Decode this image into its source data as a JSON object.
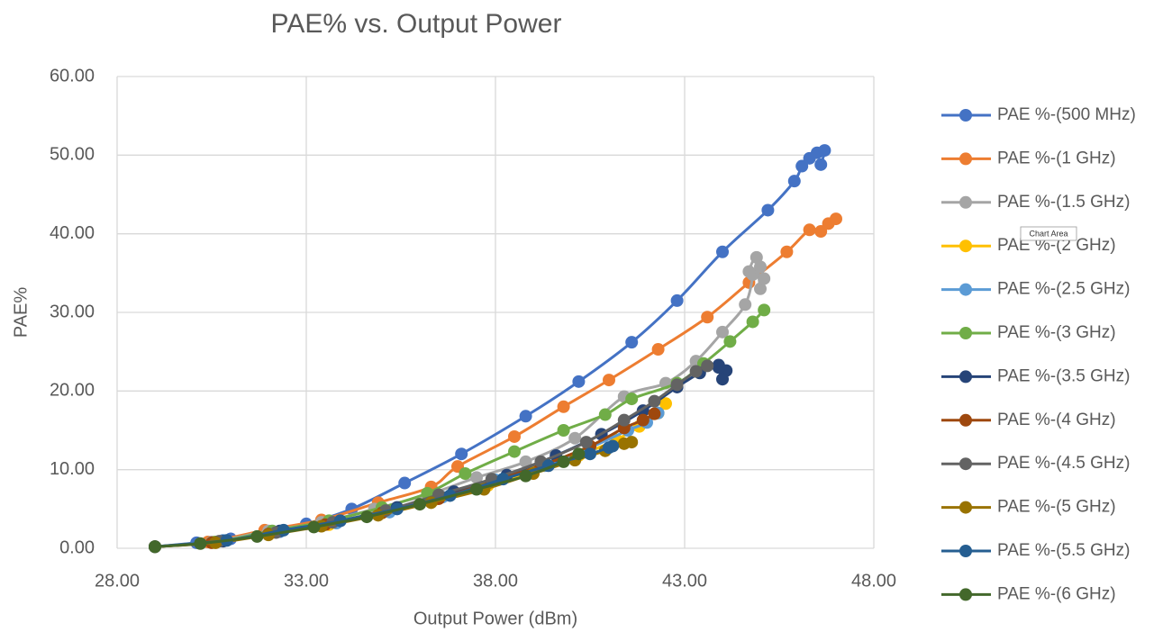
{
  "chart_data": {
    "type": "scatter-line",
    "title": "PAE% vs. Output Power",
    "x_label": "Output Power (dBm)",
    "y_label": "PAE%",
    "tooltip": "Chart Area",
    "xlim": [
      28,
      48
    ],
    "ylim": [
      0,
      60
    ],
    "grid": true,
    "legend": "right",
    "xticks": [
      {
        "value": 28,
        "label": "28.00"
      },
      {
        "value": 33,
        "label": "33.00"
      },
      {
        "value": 38,
        "label": "38.00"
      },
      {
        "value": 43,
        "label": "43.00"
      },
      {
        "value": 48,
        "label": "48.00"
      }
    ],
    "yticks": [
      {
        "value": 0,
        "label": "0.00"
      },
      {
        "value": 10,
        "label": "10.00"
      },
      {
        "value": 20,
        "label": "20.00"
      },
      {
        "value": 30,
        "label": "30.00"
      },
      {
        "value": 40,
        "label": "40.00"
      },
      {
        "value": 50,
        "label": "50.00"
      },
      {
        "value": 60,
        "label": "60.00"
      }
    ],
    "series": [
      {
        "name": "PAE %-(500 MHz)",
        "color": "#4472c4",
        "x": [
          29,
          30.1,
          31,
          32,
          33,
          34.2,
          35.6,
          37.1,
          38.8,
          40.2,
          41.6,
          42.8,
          44,
          45.2,
          45.9,
          46.1,
          46.3,
          46.5,
          46.7,
          46.6
        ],
        "values": [
          0.2,
          0.7,
          1.2,
          2.1,
          3.1,
          5,
          8.3,
          12,
          16.8,
          21.2,
          26.2,
          31.5,
          37.7,
          43,
          46.7,
          48.6,
          49.6,
          50.3,
          50.6,
          48.8
        ]
      },
      {
        "name": "PAE %-(1 GHz)",
        "color": "#ed7d31",
        "x": [
          29,
          30.4,
          31.9,
          33.4,
          34.9,
          36.3,
          37,
          38.5,
          39.8,
          41,
          42.3,
          43.6,
          44.7,
          45.7,
          46.3,
          46.6,
          46.8,
          47
        ],
        "values": [
          0.2,
          0.8,
          2.3,
          3.6,
          5.8,
          7.8,
          10.4,
          14.2,
          18,
          21.4,
          25.3,
          29.4,
          33.8,
          37.7,
          40.5,
          40.3,
          41.3,
          41.9
        ]
      },
      {
        "name": "PAE %-(1.5 GHz)",
        "color": "#a5a5a5",
        "x": [
          29,
          30.5,
          32,
          33.4,
          34.8,
          36.2,
          37.5,
          38.8,
          40.1,
          41.4,
          42.5,
          43.3,
          44,
          44.6,
          44.8,
          44.7,
          44.9,
          45,
          45.1,
          45
        ],
        "values": [
          0.2,
          0.8,
          2.2,
          3.3,
          5,
          6.8,
          9,
          11,
          14,
          19.3,
          21,
          23.8,
          27.5,
          31,
          34.8,
          35.2,
          37,
          33,
          34.3,
          35.8
        ]
      },
      {
        "name": "PAE %-(2 GHz)",
        "color": "#ffc000",
        "x": [
          29,
          30.6,
          32.1,
          33.6,
          35,
          36.4,
          37.8,
          39,
          40.2,
          41.2,
          41.8,
          42.3,
          42.5
        ],
        "values": [
          0.2,
          0.8,
          2,
          3,
          4.5,
          6.2,
          8,
          9.8,
          11.8,
          13.8,
          15.5,
          17.2,
          18.4
        ]
      },
      {
        "name": "PAE %-(2.5 GHz)",
        "color": "#5b9bd5",
        "x": [
          29,
          30.8,
          32.3,
          33.8,
          35.2,
          36.6,
          38,
          39.3,
          40.5,
          41.5,
          42,
          42.3
        ],
        "values": [
          0.2,
          1,
          2.1,
          3.2,
          4.6,
          6.5,
          8.7,
          10.5,
          12.8,
          15,
          16,
          17.2
        ]
      },
      {
        "name": "PAE %-(3 GHz)",
        "color": "#70ad47",
        "x": [
          29,
          30.6,
          32.1,
          33.6,
          35,
          36.2,
          37.2,
          38.5,
          39.8,
          40.9,
          41.6,
          42.8,
          43.5,
          44.2,
          44.8,
          45.1
        ],
        "values": [
          0.2,
          0.8,
          2.2,
          3.5,
          5.2,
          7,
          9.5,
          12.3,
          15,
          17,
          19,
          21,
          23.5,
          26.3,
          28.8,
          30.3
        ]
      },
      {
        "name": "PAE %-(3.5 GHz)",
        "color": "#264478",
        "x": [
          29,
          30.8,
          32.3,
          33.9,
          35.4,
          36.9,
          38.3,
          39.6,
          40.8,
          41.9,
          42.8,
          43.4,
          43.9,
          44.1,
          44,
          43.9
        ],
        "values": [
          0.2,
          0.9,
          2.2,
          3.5,
          5.2,
          7.2,
          9.3,
          11.8,
          14.5,
          17.5,
          20.5,
          22.3,
          23.3,
          22.6,
          21.5,
          23
        ]
      },
      {
        "name": "PAE %-(4 GHz)",
        "color": "#9e480e",
        "x": [
          29,
          30.5,
          32,
          33.5,
          35,
          36.5,
          37.9,
          39.2,
          40.5,
          41.4,
          41.9,
          42.2
        ],
        "values": [
          0.2,
          0.7,
          1.8,
          3,
          4.5,
          6.3,
          8.5,
          10.5,
          13,
          15.3,
          16.3,
          17.1
        ]
      },
      {
        "name": "PAE %-(4.5 GHz)",
        "color": "#636363",
        "x": [
          29,
          30.7,
          32.2,
          33.7,
          35.1,
          36.5,
          37.9,
          39.2,
          40.4,
          41.4,
          42.2,
          42.8,
          43.3,
          43.6
        ],
        "values": [
          0.2,
          0.9,
          2,
          3.3,
          4.8,
          6.8,
          8.8,
          11,
          13.5,
          16.3,
          18.7,
          20.8,
          22.5,
          23.2
        ]
      },
      {
        "name": "PAE %-(5 GHz)",
        "color": "#997300",
        "x": [
          29,
          30.6,
          32,
          33.4,
          34.9,
          36.3,
          37.7,
          39,
          40.1,
          40.9,
          41.4,
          41.6
        ],
        "values": [
          0.2,
          0.7,
          1.7,
          2.8,
          4.2,
          5.8,
          7.5,
          9.5,
          11.2,
          12.4,
          13.3,
          13.5
        ]
      },
      {
        "name": "PAE %-(5.5 GHz)",
        "color": "#255e91",
        "x": [
          29,
          30.9,
          32.4,
          33.9,
          35.4,
          36.8,
          38.2,
          39.4,
          40.5,
          41,
          41.1
        ],
        "values": [
          0.2,
          1,
          2.3,
          3.5,
          5,
          6.7,
          8.8,
          10.5,
          12,
          12.8,
          13
        ]
      },
      {
        "name": "PAE %-(6 GHz)",
        "color": "#43682b",
        "x": [
          29,
          30.2,
          31.7,
          33.2,
          34.6,
          36,
          37.5,
          38.8,
          39.8,
          40.2
        ],
        "values": [
          0.2,
          0.6,
          1.5,
          2.7,
          4,
          5.6,
          7.5,
          9.2,
          11,
          12
        ]
      }
    ]
  }
}
